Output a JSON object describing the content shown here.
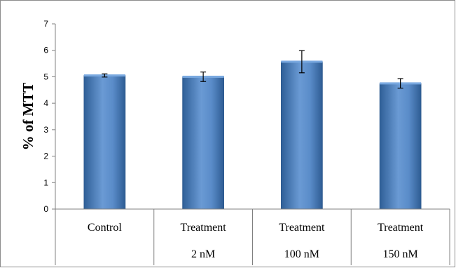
{
  "chart_data": {
    "type": "bar",
    "categories": [
      {
        "line1": "Control",
        "line2": ""
      },
      {
        "line1": "Treatment",
        "line2": "2 nM"
      },
      {
        "line1": "Treatment",
        "line2": "100 nM"
      },
      {
        "line1": "Treatment",
        "line2": "150 nM"
      }
    ],
    "values": [
      5.05,
      5.0,
      5.57,
      4.75
    ],
    "errors": [
      0.06,
      0.18,
      0.42,
      0.18
    ],
    "ylabel": "% of MTT",
    "ylim": [
      0,
      7
    ],
    "yticks": [
      0,
      1,
      2,
      3,
      4,
      5,
      6,
      7
    ],
    "grid": false,
    "legend": "none",
    "colors": {
      "bar_dark": "#2f5f97",
      "bar_mid": "#5a8cc9",
      "bar_light": "#7aa9e0",
      "axis": "#808080",
      "frame": "#8c8c8c",
      "text": "#000000"
    }
  }
}
